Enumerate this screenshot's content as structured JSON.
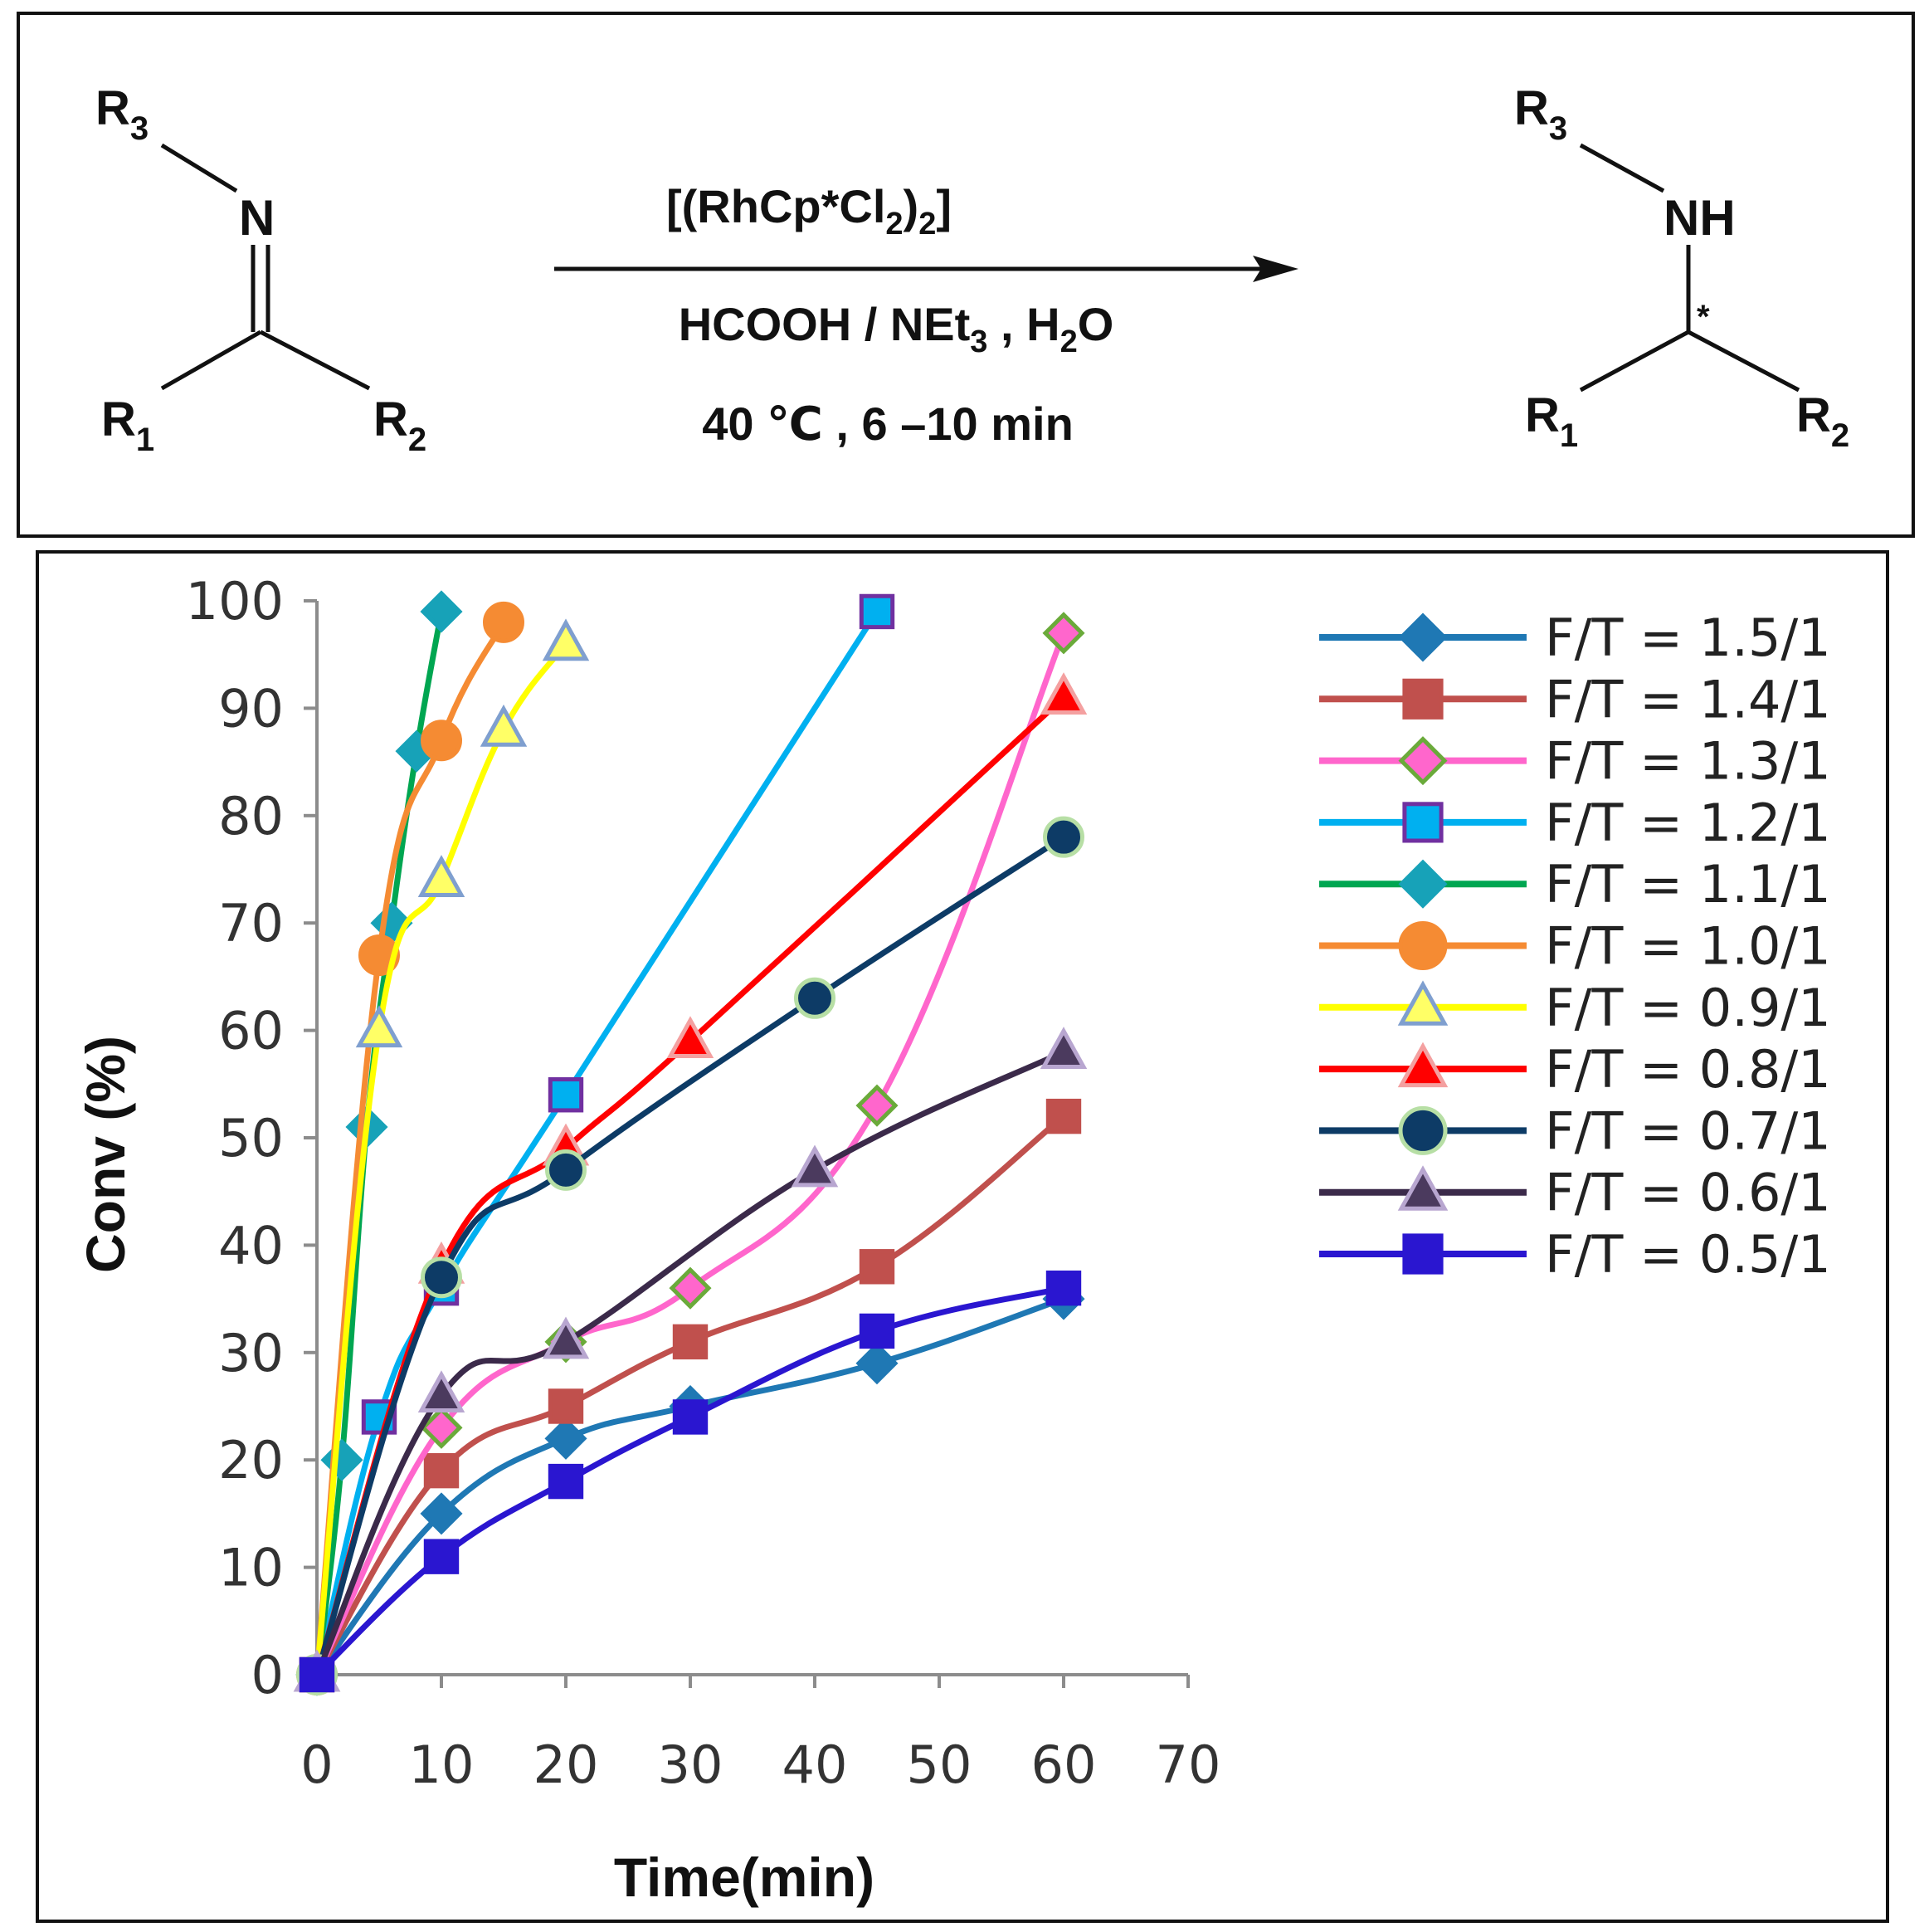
{
  "scheme": {
    "reactant": {
      "r3": "R",
      "r3_sub": "3",
      "n": "N",
      "r1": "R",
      "r1_sub": "1",
      "r2": "R",
      "r2_sub": "2"
    },
    "product": {
      "r3": "R",
      "r3_sub": "3",
      "nh": "NH",
      "star": "*",
      "r1": "R",
      "r1_sub": "1",
      "r2": "R",
      "r2_sub": "2"
    },
    "catalyst": {
      "a": "[(RhCp*Cl",
      "sub1": "2",
      "b": ")",
      "sub2": "2",
      "c": "]"
    },
    "reagents": {
      "a": "HCOOH / NEt",
      "sub1": "3",
      "b": " , H",
      "sub2": "2",
      "c": "O"
    },
    "conditions": "40 ℃ , 6 –10 min"
  },
  "chart_data": {
    "type": "line",
    "xlabel": "Time(min)",
    "ylabel": "Conv (%)",
    "xlim": [
      0,
      70
    ],
    "ylim": [
      0,
      100
    ],
    "xticks": [
      "0",
      "10",
      "20",
      "30",
      "40",
      "50",
      "60",
      "70"
    ],
    "yticks": [
      "0",
      "10",
      "20",
      "30",
      "40",
      "50",
      "60",
      "70",
      "80",
      "90",
      "100"
    ],
    "grid": false,
    "legend_position": "right",
    "series": [
      {
        "name": "F/T = 1.5/1",
        "color": "#1f78b4",
        "marker": "diamond",
        "marker_fill": "#1f78b4",
        "marker_stroke": "#1f78b4",
        "points": [
          [
            0,
            0
          ],
          [
            10,
            15
          ],
          [
            20,
            22
          ],
          [
            30,
            25
          ],
          [
            45,
            29
          ],
          [
            60,
            35
          ]
        ]
      },
      {
        "name": "F/T = 1.4/1",
        "color": "#c0504d",
        "marker": "square",
        "marker_fill": "#c0504d",
        "marker_stroke": "#c0504d",
        "points": [
          [
            0,
            0
          ],
          [
            10,
            19
          ],
          [
            20,
            25
          ],
          [
            30,
            31
          ],
          [
            45,
            38
          ],
          [
            60,
            52
          ]
        ]
      },
      {
        "name": "F/T = 1.3/1",
        "color": "#ff66cc",
        "marker": "diamond",
        "marker_fill": "#ff66cc",
        "marker_stroke": "#6aaa3a",
        "points": [
          [
            0,
            0
          ],
          [
            10,
            23
          ],
          [
            20,
            31
          ],
          [
            30,
            36
          ],
          [
            45,
            53
          ],
          [
            60,
            97
          ]
        ]
      },
      {
        "name": "F/T = 1.2/1",
        "color": "#00b0f0",
        "marker": "square",
        "marker_fill": "#00b0f0",
        "marker_stroke": "#7030a0",
        "points": [
          [
            0,
            0
          ],
          [
            5,
            24
          ],
          [
            10,
            36
          ],
          [
            20,
            54
          ],
          [
            45,
            99
          ]
        ]
      },
      {
        "name": "F/T = 1.1/1",
        "color": "#00a651",
        "marker": "diamond",
        "marker_fill": "#17a2b8",
        "marker_stroke": "#17a2b8",
        "points": [
          [
            0,
            0
          ],
          [
            2,
            20
          ],
          [
            4,
            51
          ],
          [
            6,
            70
          ],
          [
            8,
            86
          ],
          [
            10,
            99
          ]
        ]
      },
      {
        "name": "F/T = 1.0/1",
        "color": "#f58b33",
        "marker": "circle",
        "marker_fill": "#f58b33",
        "marker_stroke": "#f58b33",
        "points": [
          [
            0,
            0
          ],
          [
            5,
            67
          ],
          [
            10,
            87
          ],
          [
            15,
            98
          ]
        ]
      },
      {
        "name": "F/T = 0.9/1",
        "color": "#ffff00",
        "marker": "triangle",
        "marker_fill": "#ffff66",
        "marker_stroke": "#7f9fcf",
        "points": [
          [
            0,
            0
          ],
          [
            5,
            60
          ],
          [
            10,
            74
          ],
          [
            15,
            88
          ],
          [
            20,
            96
          ]
        ]
      },
      {
        "name": "F/T = 0.8/1",
        "color": "#ff0000",
        "marker": "triangle",
        "marker_fill": "#ff0000",
        "marker_stroke": "#f4a0a0",
        "points": [
          [
            0,
            0
          ],
          [
            10,
            38
          ],
          [
            20,
            49
          ],
          [
            30,
            59
          ],
          [
            60,
            91
          ]
        ]
      },
      {
        "name": "F/T = 0.7/1",
        "color": "#0d3b66",
        "marker": "circle",
        "marker_fill": "#0d3b66",
        "marker_stroke": "#b7dfa5",
        "points": [
          [
            0,
            0
          ],
          [
            10,
            37
          ],
          [
            20,
            47
          ],
          [
            40,
            63
          ],
          [
            60,
            78
          ]
        ]
      },
      {
        "name": "F/T = 0.6/1",
        "color": "#3b2a4a",
        "marker": "triangle",
        "marker_fill": "#4b3a5e",
        "marker_stroke": "#b8a6d0",
        "points": [
          [
            0,
            0
          ],
          [
            10,
            26
          ],
          [
            20,
            31
          ],
          [
            40,
            47
          ],
          [
            60,
            58
          ]
        ]
      },
      {
        "name": "F/T = 0.5/1",
        "color": "#2a16d0",
        "marker": "square",
        "marker_fill": "#2a16d0",
        "marker_stroke": "#2a16d0",
        "points": [
          [
            0,
            0
          ],
          [
            10,
            11
          ],
          [
            20,
            18
          ],
          [
            30,
            24
          ],
          [
            45,
            32
          ],
          [
            60,
            36
          ]
        ]
      }
    ]
  }
}
